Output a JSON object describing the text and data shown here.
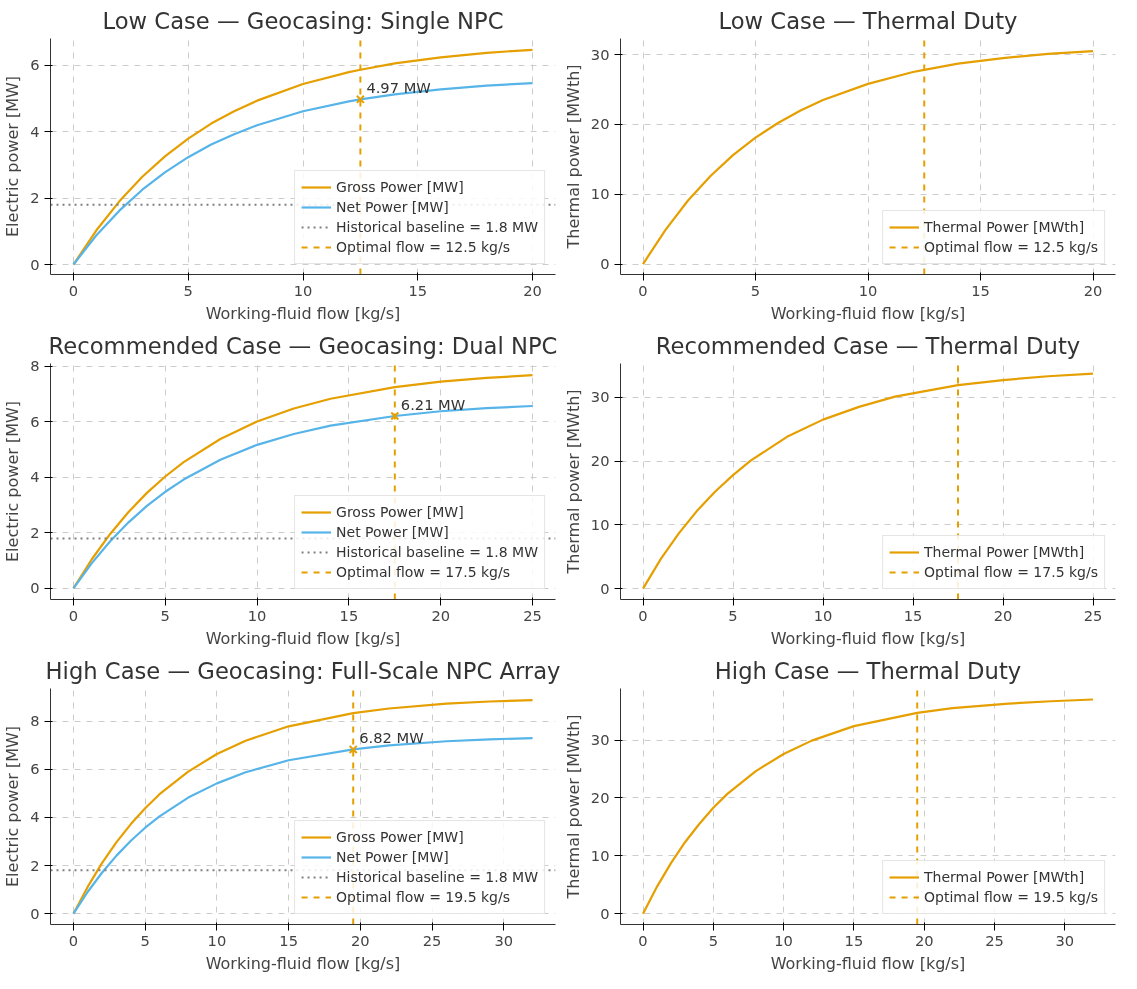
{
  "chart_data": [
    {
      "type": "line",
      "title": "Low Case — Geocasing: Single NPC",
      "xlabel": "Working-fluid flow [kg/s]",
      "ylabel": "Electric power [MW]",
      "xlim": [
        -1,
        21
      ],
      "xticks": [
        0,
        5,
        10,
        15,
        20
      ],
      "ylim": [
        -0.3,
        6.8
      ],
      "yticks": [
        0,
        2,
        4,
        6
      ],
      "grid": true,
      "legend": "bottom right",
      "x": [
        0,
        1,
        2,
        3,
        4,
        5,
        6,
        7,
        8,
        10,
        12,
        12.5,
        14,
        16,
        18,
        20
      ],
      "series": [
        {
          "name": "Gross Power [MW]",
          "color": "#e69f00",
          "values": [
            0,
            1.03,
            1.9,
            2.64,
            3.26,
            3.79,
            4.24,
            4.61,
            4.93,
            5.43,
            5.79,
            5.86,
            6.05,
            6.23,
            6.37,
            6.46
          ]
        },
        {
          "name": "Net Power [MW]",
          "color": "#56b4e9",
          "values": [
            0,
            0.88,
            1.62,
            2.25,
            2.78,
            3.23,
            3.61,
            3.92,
            4.19,
            4.61,
            4.91,
            4.97,
            5.12,
            5.27,
            5.38,
            5.46
          ]
        },
        {
          "type": "scatter",
          "marker": "cross",
          "color": "#e69f00",
          "x": [
            12.5
          ],
          "values": [
            4.97
          ]
        }
      ],
      "ref_lines": [
        {
          "axis": "y",
          "value": 1.8,
          "label": "Historical baseline = 1.8 MW",
          "color": "#808080",
          "line_style": "dotted"
        },
        {
          "axis": "x",
          "value": 12.5,
          "label": "Optimal flow = 12.5 kg/s",
          "color": "#e69f00",
          "line_style": "dashed"
        }
      ],
      "annotations": [
        {
          "text": "4.97 MW",
          "x": 12.5,
          "y": 4.97
        }
      ]
    },
    {
      "type": "line",
      "title": "Low Case — Thermal Duty",
      "xlabel": "Working-fluid flow [kg/s]",
      "ylabel": "Thermal power [MWth]",
      "xlim": [
        -1,
        21
      ],
      "xticks": [
        0,
        5,
        10,
        15,
        20
      ],
      "ylim": [
        -1.5,
        32.3
      ],
      "yticks": [
        0,
        10,
        20,
        30
      ],
      "grid": true,
      "legend": "bottom right",
      "x": [
        0,
        1,
        2,
        3,
        4,
        5,
        6,
        7,
        8,
        10,
        12,
        12.5,
        14,
        16,
        18,
        20
      ],
      "series": [
        {
          "name": "Thermal Power [MWth]",
          "color": "#e69f00",
          "values": [
            0,
            4.9,
            9.1,
            12.6,
            15.6,
            18.1,
            20.2,
            22.0,
            23.5,
            25.8,
            27.5,
            27.8,
            28.7,
            29.5,
            30.1,
            30.5
          ]
        }
      ],
      "ref_lines": [
        {
          "axis": "x",
          "value": 12.5,
          "label": "Optimal flow = 12.5 kg/s",
          "color": "#e69f00",
          "line_style": "dashed"
        }
      ]
    },
    {
      "type": "line",
      "title": "Recommended Case — Geocasing: Dual NPC",
      "xlabel": "Working-fluid flow [kg/s]",
      "ylabel": "Electric power [MW]",
      "xlim": [
        -1.25,
        26.25
      ],
      "xticks": [
        0,
        5,
        10,
        15,
        20,
        25
      ],
      "ylim": [
        -0.4,
        8.1
      ],
      "yticks": [
        0,
        2,
        4,
        6,
        8
      ],
      "grid": true,
      "legend": "bottom right",
      "x": [
        0,
        1,
        2,
        3,
        4,
        5,
        6,
        8,
        10,
        12,
        14,
        17.5,
        20,
        22.5,
        25
      ],
      "series": [
        {
          "name": "Gross Power [MW]",
          "color": "#e69f00",
          "values": [
            0,
            1.05,
            1.96,
            2.75,
            3.44,
            4.03,
            4.55,
            5.38,
            6.01,
            6.48,
            6.83,
            7.25,
            7.45,
            7.58,
            7.68
          ]
        },
        {
          "name": "Net Power [MW]",
          "color": "#56b4e9",
          "values": [
            0,
            0.91,
            1.7,
            2.38,
            2.97,
            3.48,
            3.92,
            4.63,
            5.17,
            5.56,
            5.86,
            6.21,
            6.38,
            6.49,
            6.57
          ]
        },
        {
          "type": "scatter",
          "marker": "cross",
          "color": "#e69f00",
          "x": [
            17.5
          ],
          "values": [
            6.21
          ]
        }
      ],
      "ref_lines": [
        {
          "axis": "y",
          "value": 1.8,
          "label": "Historical baseline = 1.8 MW",
          "color": "#808080",
          "line_style": "dotted"
        },
        {
          "axis": "x",
          "value": 17.5,
          "label": "Optimal flow = 17.5 kg/s",
          "color": "#e69f00",
          "line_style": "dashed"
        }
      ],
      "annotations": [
        {
          "text": "6.21 MW",
          "x": 17.5,
          "y": 6.21
        }
      ]
    },
    {
      "type": "line",
      "title": "Recommended Case — Thermal Duty",
      "xlabel": "Working-fluid flow [kg/s]",
      "ylabel": "Thermal power [MWth]",
      "xlim": [
        -1.25,
        26.25
      ],
      "xticks": [
        0,
        5,
        10,
        15,
        20,
        25
      ],
      "ylim": [
        -1.7,
        35.3
      ],
      "yticks": [
        0,
        10,
        20,
        30
      ],
      "grid": true,
      "legend": "bottom right",
      "x": [
        0,
        1,
        2,
        3,
        4,
        5,
        6,
        8,
        10,
        12,
        14,
        17.5,
        20,
        22.5,
        25
      ],
      "series": [
        {
          "name": "Thermal Power [MWth]",
          "color": "#e69f00",
          "values": [
            0,
            4.7,
            8.7,
            12.2,
            15.2,
            17.8,
            20.1,
            23.8,
            26.5,
            28.5,
            30.1,
            31.9,
            32.7,
            33.3,
            33.7
          ]
        }
      ],
      "ref_lines": [
        {
          "axis": "x",
          "value": 17.5,
          "label": "Optimal flow = 17.5 kg/s",
          "color": "#e69f00",
          "line_style": "dashed"
        }
      ]
    },
    {
      "type": "line",
      "title": "High Case — Geocasing: Full-Scale NPC Array",
      "xlabel": "Working-fluid flow [kg/s]",
      "ylabel": "Electric power [MW]",
      "xlim": [
        -1.6,
        33.6
      ],
      "xticks": [
        0,
        5,
        10,
        15,
        20,
        25,
        30
      ],
      "ylim": [
        -0.45,
        9.35
      ],
      "yticks": [
        0,
        2,
        4,
        6,
        8
      ],
      "grid": true,
      "legend": "bottom right",
      "x": [
        0,
        1,
        2,
        3,
        4,
        5,
        6,
        8,
        10,
        12,
        15,
        19.5,
        22,
        26,
        29,
        32
      ],
      "series": [
        {
          "name": "Gross Power [MW]",
          "color": "#e69f00",
          "values": [
            0,
            1.12,
            2.11,
            2.97,
            3.72,
            4.38,
            4.96,
            5.9,
            6.63,
            7.18,
            7.78,
            8.33,
            8.52,
            8.72,
            8.81,
            8.87
          ]
        },
        {
          "name": "Net Power [MW]",
          "color": "#56b4e9",
          "values": [
            0,
            0.91,
            1.71,
            2.41,
            3.03,
            3.57,
            4.04,
            4.82,
            5.41,
            5.87,
            6.37,
            6.82,
            6.99,
            7.16,
            7.24,
            7.29
          ]
        },
        {
          "type": "scatter",
          "marker": "cross",
          "color": "#e69f00",
          "x": [
            19.5
          ],
          "values": [
            6.82
          ]
        }
      ],
      "ref_lines": [
        {
          "axis": "y",
          "value": 1.8,
          "label": "Historical baseline = 1.8 MW",
          "color": "#808080",
          "line_style": "dotted"
        },
        {
          "axis": "x",
          "value": 19.5,
          "label": "Optimal flow = 19.5 kg/s",
          "color": "#e69f00",
          "line_style": "dashed"
        }
      ],
      "annotations": [
        {
          "text": "6.82 MW",
          "x": 19.5,
          "y": 6.82
        }
      ]
    },
    {
      "type": "line",
      "title": "High Case — Thermal Duty",
      "xlabel": "Working-fluid flow [kg/s]",
      "ylabel": "Thermal power [MWth]",
      "xlim": [
        -1.6,
        33.6
      ],
      "xticks": [
        0,
        5,
        10,
        15,
        20,
        25,
        30
      ],
      "ylim": [
        -1.85,
        38.9
      ],
      "yticks": [
        0,
        10,
        20,
        30
      ],
      "grid": true,
      "legend": "bottom right",
      "x": [
        0,
        1,
        2,
        3,
        4,
        5,
        6,
        8,
        10,
        12,
        15,
        19.5,
        22,
        26,
        29,
        32
      ],
      "series": [
        {
          "name": "Thermal Power [MWth]",
          "color": "#e69f00",
          "values": [
            0,
            4.7,
            8.8,
            12.4,
            15.5,
            18.3,
            20.7,
            24.6,
            27.6,
            29.9,
            32.4,
            34.7,
            35.5,
            36.3,
            36.7,
            37.0
          ]
        }
      ],
      "ref_lines": [
        {
          "axis": "x",
          "value": 19.5,
          "label": "Optimal flow = 19.5 kg/s",
          "color": "#e69f00",
          "line_style": "dashed"
        }
      ]
    }
  ]
}
